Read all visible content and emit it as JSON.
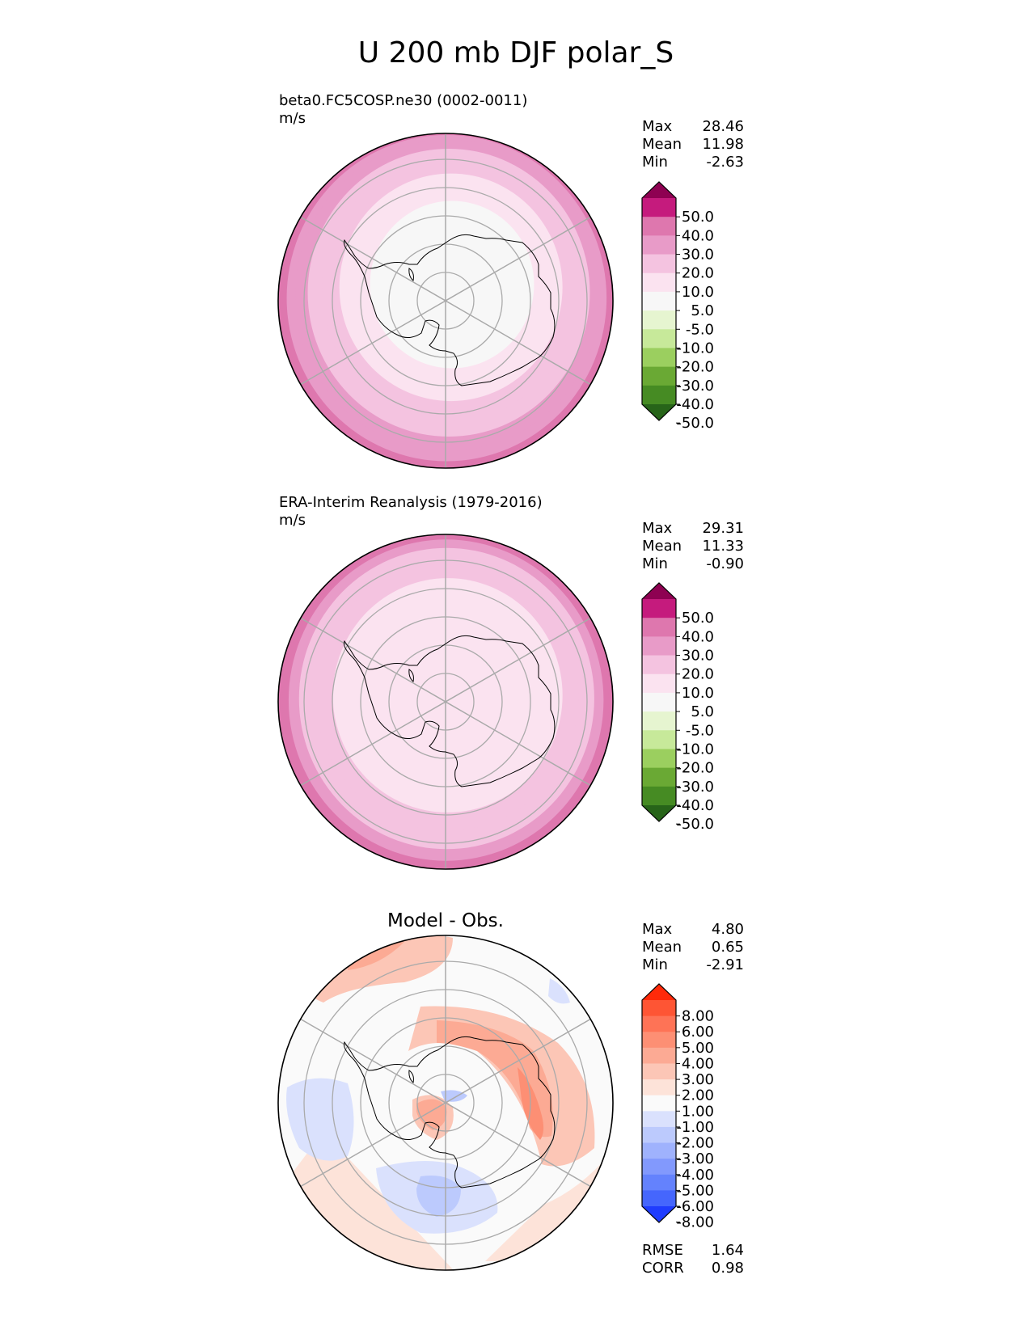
{
  "figure": {
    "title": "U 200 mb DJF polar_S"
  },
  "chart_data": [
    {
      "type": "polar_contour_map",
      "panel": "test",
      "title": "",
      "subtitle": "beta0.FC5COSP.ne30 (0002-0011)",
      "units": "m/s",
      "stats": {
        "max_label": "Max",
        "mean_label": "Mean",
        "min_label": "Min",
        "max": "28.46",
        "mean": "11.98",
        "min": "-2.63"
      },
      "colorbar": {
        "levels": [
          "50.0",
          "40.0",
          "30.0",
          "20.0",
          "10.0",
          "5.0",
          "-5.0",
          "-10.0",
          "-20.0",
          "-30.0",
          "-40.0",
          "-50.0"
        ],
        "colors": [
          "#8e0152",
          "#c51b7d",
          "#de77ae",
          "#e89bc8",
          "#f4c3e0",
          "#fbe3f0",
          "#f7f7f7",
          "#e6f5d0",
          "#c7e99a",
          "#9bcf5f",
          "#6aa934",
          "#468b23",
          "#276419"
        ]
      },
      "rings": [
        0.995,
        0.975,
        0.93,
        0.86,
        0.78,
        0.68,
        0.5
      ],
      "ring_colors": [
        "#de77ae",
        "#e89bc8",
        "#e89bc8",
        "#f4c3e0",
        "#f4c3e0",
        "#fbe3f0",
        "#f7f7f7"
      ]
    },
    {
      "type": "polar_contour_map",
      "panel": "reference",
      "title": "",
      "subtitle": "ERA-Interim Reanalysis (1979-2016)",
      "units": "m/s",
      "stats": {
        "max_label": "Max",
        "mean_label": "Mean",
        "min_label": "Min",
        "max": "29.31",
        "mean": "11.33",
        "min": "-0.90"
      },
      "colorbar": {
        "levels": [
          "50.0",
          "40.0",
          "30.0",
          "20.0",
          "10.0",
          "5.0",
          "-5.0",
          "-10.0",
          "-20.0",
          "-30.0",
          "-40.0",
          "-50.0"
        ],
        "colors": [
          "#8e0152",
          "#c51b7d",
          "#de77ae",
          "#e89bc8",
          "#f4c3e0",
          "#fbe3f0",
          "#f7f7f7",
          "#e6f5d0",
          "#c7e99a",
          "#9bcf5f",
          "#6aa934",
          "#468b23",
          "#276419"
        ]
      },
      "rings": [
        0.995,
        0.96,
        0.9,
        0.8,
        0.7
      ],
      "ring_colors": [
        "#de77ae",
        "#e89bc8",
        "#f4c3e0",
        "#f4c3e0",
        "#fbe3f0"
      ]
    },
    {
      "type": "polar_contour_map",
      "panel": "difference",
      "title": "Model - Obs.",
      "subtitle": "",
      "units": "",
      "stats": {
        "max_label": "Max",
        "mean_label": "Mean",
        "min_label": "Min",
        "max": "4.80",
        "mean": "0.65",
        "min": "-2.91",
        "rmse_label": "RMSE",
        "rmse": "1.64",
        "corr_label": "CORR",
        "corr": "0.98"
      },
      "colorbar": {
        "levels": [
          "8.00",
          "6.00",
          "5.00",
          "4.00",
          "3.00",
          "2.00",
          "1.00",
          "-1.00",
          "-2.00",
          "-3.00",
          "-4.00",
          "-5.00",
          "-6.00",
          "-8.00"
        ],
        "colors": [
          "#ff2a0a",
          "#fe5534",
          "#fe7356",
          "#fd8f74",
          "#fcaa94",
          "#fcc6b6",
          "#fde3d9",
          "#fafafa",
          "#dae1fd",
          "#bccafd",
          "#9fb2fd",
          "#8299fd",
          "#6482fd",
          "#4566fd",
          "#1f3cfe"
        ]
      }
    }
  ]
}
